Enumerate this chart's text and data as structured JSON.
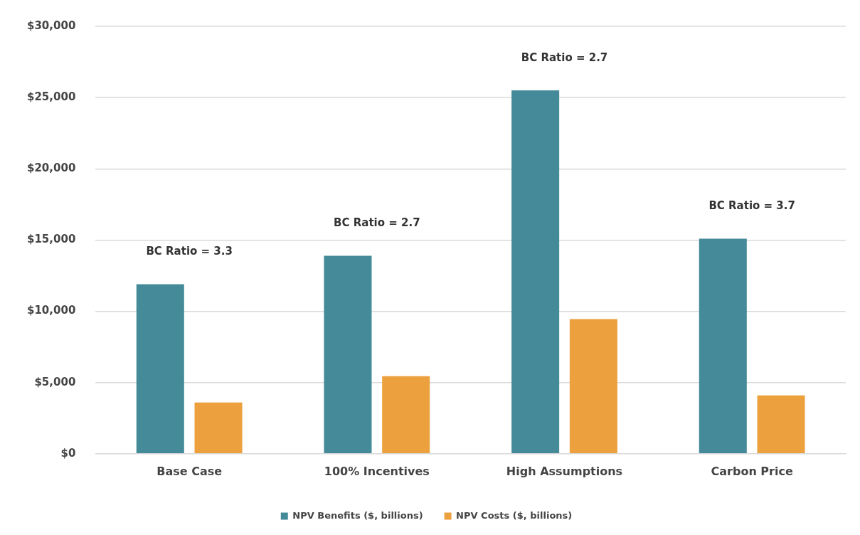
{
  "chart_data": {
    "type": "bar",
    "categories": [
      "Base Case",
      "100% Incentives",
      "High Assumptions",
      "Carbon Price"
    ],
    "series": [
      {
        "name": "NPV Benefits ($, billions)",
        "color": "#448a99",
        "values": [
          11900,
          13900,
          25500,
          15100
        ]
      },
      {
        "name": "NPV Costs ($, billions)",
        "color": "#eda03e",
        "values": [
          3600,
          5450,
          9450,
          4100
        ]
      }
    ],
    "ylim": [
      0,
      30000
    ],
    "yticks": [
      {
        "value": 0,
        "label": "$0"
      },
      {
        "value": 5000,
        "label": "$5,000"
      },
      {
        "value": 10000,
        "label": "$10,000"
      },
      {
        "value": 15000,
        "label": "$15,000"
      },
      {
        "value": 20000,
        "label": "$20,000"
      },
      {
        "value": 25000,
        "label": "$25,000"
      },
      {
        "value": 30000,
        "label": "$30,000"
      }
    ],
    "annotations": [
      "BC Ratio = 3.3",
      "BC Ratio = 2.7",
      "BC Ratio = 2.7",
      "BC Ratio = 3.7"
    ],
    "grid": "y",
    "legend": "bottom"
  }
}
